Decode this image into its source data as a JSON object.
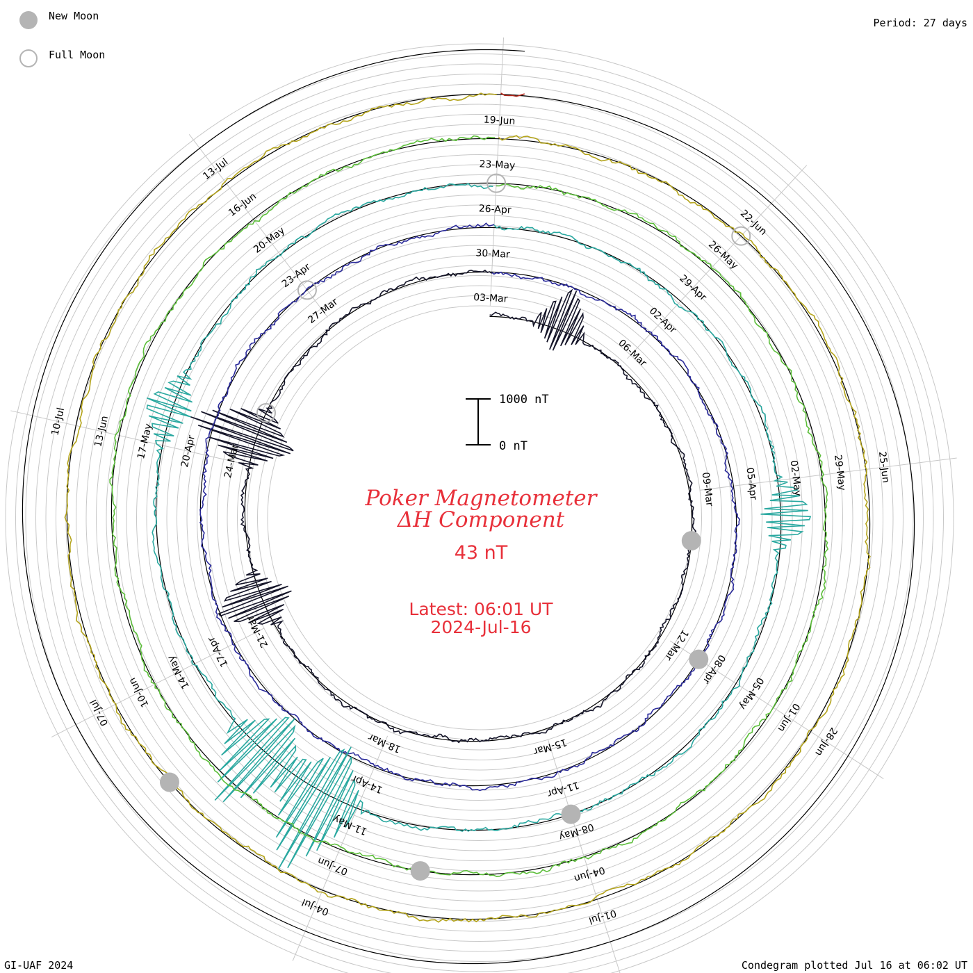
{
  "legend": {
    "new_moon": "New Moon",
    "full_moon": "Full Moon"
  },
  "period": "Period: 27 days",
  "credit": "GI-UAF 2024",
  "plotted": "Condegram plotted Jul 16 at 06:02 UT",
  "title": {
    "line1": "Poker Magnetometer",
    "line2": "ΔH Component",
    "value": "43 nT",
    "latest_label": "Latest: 06:01 UT",
    "latest_date": "2024-Jul-16"
  },
  "scale_bar": {
    "top": "1000 nT",
    "bottom": "0 nT"
  },
  "colors": {
    "text_red": "#e8303a",
    "grid": "#c8c8c8",
    "moon": "#b4b4b4"
  },
  "chart_data": {
    "type": "line",
    "chart_form": "condegram spiral",
    "period_days": 27,
    "start_date": "03-Mar",
    "end_date": "16-Jul",
    "units": "nT",
    "turns": [
      {
        "color": "#141428",
        "labels": [
          "03-Mar",
          "06-Mar",
          "09-Mar",
          "12-Mar",
          "15-Mar",
          "18-Mar",
          "21-Mar",
          "24-Mar",
          "27-Mar"
        ]
      },
      {
        "color": "#2a2a9a",
        "labels": [
          "30-Mar",
          "02-Apr",
          "05-Apr",
          "08-Apr",
          "11-Apr",
          "14-Apr",
          "17-Apr",
          "20-Apr",
          "23-Apr"
        ]
      },
      {
        "color": "#2aa8a0",
        "labels": [
          "26-Apr",
          "29-Apr",
          "02-May",
          "05-May",
          "08-May",
          "11-May",
          "14-May",
          "17-May",
          "20-May"
        ]
      },
      {
        "color": "#5cbe3a",
        "labels": [
          "23-May",
          "26-May",
          "29-May",
          "01-Jun",
          "04-Jun",
          "07-Jun",
          "10-Jun",
          "13-Jun",
          "16-Jun"
        ]
      },
      {
        "color": "#b4a41c",
        "labels": [
          "19-Jun",
          "22-Jun",
          "25-Jun",
          "28-Jun",
          "01-Jul",
          "04-Jul",
          "07-Jul",
          "10-Jul",
          "13-Jul"
        ]
      },
      {
        "color": "#b02418",
        "labels": []
      }
    ],
    "new_moons": [
      "10-Mar",
      "08-Apr",
      "08-May",
      "06-Jun",
      "06-Jul"
    ],
    "full_moons": [
      "25-Mar",
      "23-Apr",
      "23-May",
      "22-Jun"
    ],
    "spikes": [
      {
        "date": "04-Mar",
        "value": 900
      },
      {
        "date": "24-Mar",
        "value": 1500
      },
      {
        "date": "21-Mar",
        "value": 1100
      },
      {
        "date": "11-May",
        "value": 2000
      },
      {
        "date": "12-May",
        "value": 1600
      },
      {
        "date": "02-May",
        "value": 700
      },
      {
        "date": "17-May",
        "value": 650
      }
    ]
  }
}
